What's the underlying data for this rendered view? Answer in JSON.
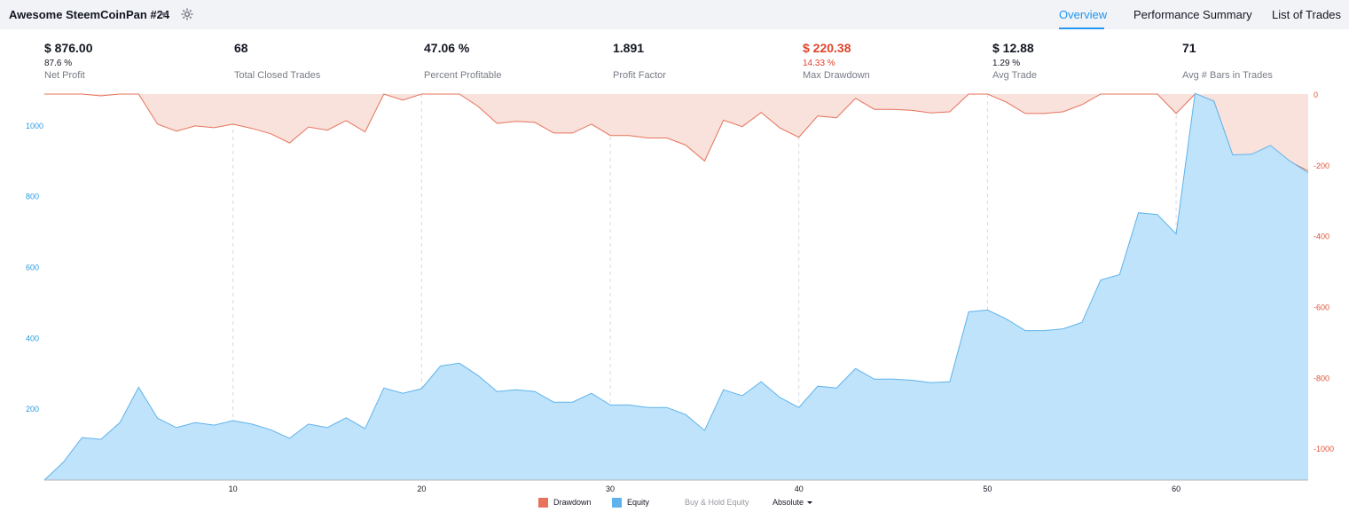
{
  "header": {
    "strategy_name": "Awesome SteemCoinPan #24",
    "tabs": [
      {
        "label": "Overview",
        "active": true
      },
      {
        "label": "Performance Summary",
        "active": false
      },
      {
        "label": "List of Trades",
        "active": false
      }
    ],
    "accent_color": "#2196f3"
  },
  "stats": [
    {
      "value": "$ 876.00",
      "sub": "87.6 %",
      "label": "Net Profit",
      "negative": false
    },
    {
      "value": "68",
      "sub": "",
      "label": "Total Closed Trades",
      "negative": false
    },
    {
      "value": "47.06 %",
      "sub": "",
      "label": "Percent Profitable",
      "negative": false
    },
    {
      "value": "1.891",
      "sub": "",
      "label": "Profit Factor",
      "negative": false
    },
    {
      "value": "$ 220.38",
      "sub": "14.33 %",
      "label": "Max Drawdown",
      "negative": true
    },
    {
      "value": "$ 12.88",
      "sub": "1.29 %",
      "label": "Avg Trade",
      "negative": false
    },
    {
      "value": "71",
      "sub": "",
      "label": "Avg # Bars in Trades",
      "negative": false
    }
  ],
  "legend": {
    "drawdown": "Drawdown",
    "equity": "Equity",
    "buy_hold": "Buy & Hold Equity",
    "mode": "Absolute"
  },
  "chart_data": {
    "type": "area",
    "x": [
      0,
      1,
      2,
      3,
      4,
      5,
      6,
      7,
      8,
      9,
      10,
      11,
      12,
      13,
      14,
      15,
      16,
      17,
      18,
      19,
      20,
      21,
      22,
      23,
      24,
      25,
      26,
      27,
      28,
      29,
      30,
      31,
      32,
      33,
      34,
      35,
      36,
      37,
      38,
      39,
      40,
      41,
      42,
      43,
      44,
      45,
      46,
      47,
      48,
      49,
      50,
      51,
      52,
      53,
      54,
      55,
      56,
      57,
      58,
      59,
      60,
      61,
      62,
      63,
      64,
      65,
      66,
      67
    ],
    "xlim": [
      0,
      67
    ],
    "x_ticks": [
      10,
      20,
      30,
      40,
      50,
      60
    ],
    "series": [
      {
        "name": "Equity",
        "axis": "left",
        "color": "#5eb3ec",
        "fill": "#bfe3fb",
        "values": [
          0,
          50,
          120,
          115,
          162,
          262,
          175,
          148,
          162,
          155,
          168,
          158,
          142,
          118,
          158,
          148,
          176,
          145,
          260,
          245,
          258,
          322,
          330,
          295,
          250,
          255,
          250,
          220,
          220,
          245,
          212,
          212,
          205,
          205,
          185,
          140,
          255,
          238,
          278,
          233,
          205,
          265,
          260,
          315,
          285,
          285,
          282,
          275,
          278,
          475,
          480,
          455,
          422,
          422,
          427,
          445,
          565,
          580,
          755,
          750,
          695,
          1092,
          1070,
          918,
          920,
          945,
          902,
          868
        ]
      },
      {
        "name": "Drawdown",
        "axis": "right",
        "color": "#e6735a",
        "fill": "#f9e1dc",
        "values": [
          0,
          0,
          0,
          -5,
          0,
          0,
          -85,
          -105,
          -90,
          -95,
          -85,
          -97,
          -112,
          -138,
          -93,
          -102,
          -75,
          -107,
          0,
          -17,
          0,
          0,
          0,
          -35,
          -83,
          -77,
          -80,
          -110,
          -110,
          -85,
          -117,
          -117,
          -124,
          -124,
          -144,
          -189,
          -74,
          -92,
          -52,
          -96,
          -122,
          -62,
          -67,
          -12,
          -43,
          -43,
          -46,
          -53,
          -50,
          0,
          0,
          -23,
          -55,
          -55,
          -50,
          -30,
          0,
          0,
          0,
          0,
          -55,
          0,
          -20,
          -174,
          -172,
          -147,
          -190,
          -217
        ]
      }
    ],
    "left_axis": {
      "ylim": [
        0,
        1090
      ],
      "ticks": [
        200,
        400,
        600,
        800,
        1000
      ]
    },
    "right_axis": {
      "ylim": [
        -1090,
        0
      ],
      "ticks": [
        0,
        -200,
        -400,
        -600,
        -800,
        -1000
      ]
    },
    "grid": "vertical-dashed",
    "legend_position": "bottom-center"
  }
}
